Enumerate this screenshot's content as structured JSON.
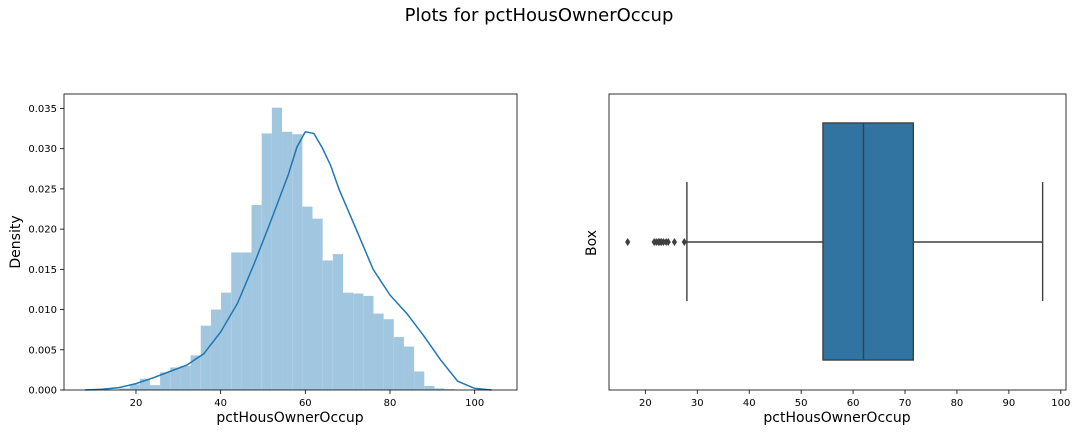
{
  "figure": {
    "suptitle": "Plots for pctHousOwnerOccup"
  },
  "chart_data": [
    {
      "type": "histogram",
      "title": "",
      "xlabel": "pctHousOwnerOccup",
      "ylabel": "Density",
      "xlim": [
        3,
        110
      ],
      "ylim": [
        0,
        0.0368
      ],
      "xticks": [
        20,
        40,
        60,
        80,
        100
      ],
      "yticks": [
        0.0,
        0.005,
        0.01,
        0.015,
        0.02,
        0.025,
        0.03,
        0.035
      ],
      "ytick_labels": [
        "0.000",
        "0.005",
        "0.010",
        "0.015",
        "0.020",
        "0.025",
        "0.030",
        "0.035"
      ],
      "colors": {
        "bars": "#a1c6e0",
        "kde": "#1f77b4"
      },
      "bin_edges": [
        16.1,
        18.5,
        20.9,
        23.3,
        25.7,
        28.1,
        30.5,
        32.9,
        35.3,
        37.7,
        40.1,
        42.5,
        44.9,
        47.3,
        49.7,
        52.1,
        54.5,
        56.9,
        59.3,
        61.7,
        64.1,
        66.5,
        68.9,
        71.3,
        73.7,
        76.1,
        78.5,
        80.9,
        83.3,
        85.7,
        88.1,
        90.5,
        92.9,
        95.3,
        97.7
      ],
      "bin_heights": [
        0.0002,
        0.0007,
        0.0014,
        0.0006,
        0.0022,
        0.0028,
        0.003,
        0.0043,
        0.008,
        0.01,
        0.0121,
        0.0171,
        0.0171,
        0.023,
        0.0319,
        0.0351,
        0.0321,
        0.0318,
        0.0228,
        0.0213,
        0.0161,
        0.0169,
        0.0121,
        0.012,
        0.0117,
        0.0095,
        0.0088,
        0.0066,
        0.0054,
        0.0023,
        0.0005,
        0.0002,
        0.0001,
        0.0
      ],
      "kde_x": [
        8,
        12,
        16,
        20,
        24,
        28,
        32,
        36,
        40,
        44,
        48,
        52,
        56,
        58,
        60,
        62,
        64,
        66,
        68,
        72,
        76,
        80,
        84,
        88,
        92,
        96,
        100,
        104
      ],
      "kde_y": [
        0.0,
        0.0001,
        0.0003,
        0.0008,
        0.0015,
        0.0023,
        0.0031,
        0.0045,
        0.0072,
        0.0108,
        0.0158,
        0.0212,
        0.0268,
        0.0302,
        0.0321,
        0.0319,
        0.0301,
        0.0279,
        0.0249,
        0.02,
        0.015,
        0.0118,
        0.0095,
        0.0067,
        0.0037,
        0.0011,
        0.0002,
        0.0
      ]
    },
    {
      "type": "box",
      "title": "",
      "xlabel": "pctHousOwnerOccup",
      "ylabel": "Box",
      "xlim": [
        13,
        101
      ],
      "xticks": [
        20,
        30,
        40,
        50,
        60,
        70,
        80,
        90,
        100
      ],
      "colors": {
        "box": "#3274a1",
        "line": "#3f3f3f",
        "flier": "#3f3f3f"
      },
      "whisker_low": 28.0,
      "q1": 54.2,
      "median": 62.0,
      "q3": 71.6,
      "whisker_high": 96.5,
      "outliers": [
        16.6,
        21.7,
        22.1,
        22.5,
        22.8,
        23.1,
        23.5,
        24.0,
        24.4,
        25.6,
        27.5
      ]
    }
  ]
}
